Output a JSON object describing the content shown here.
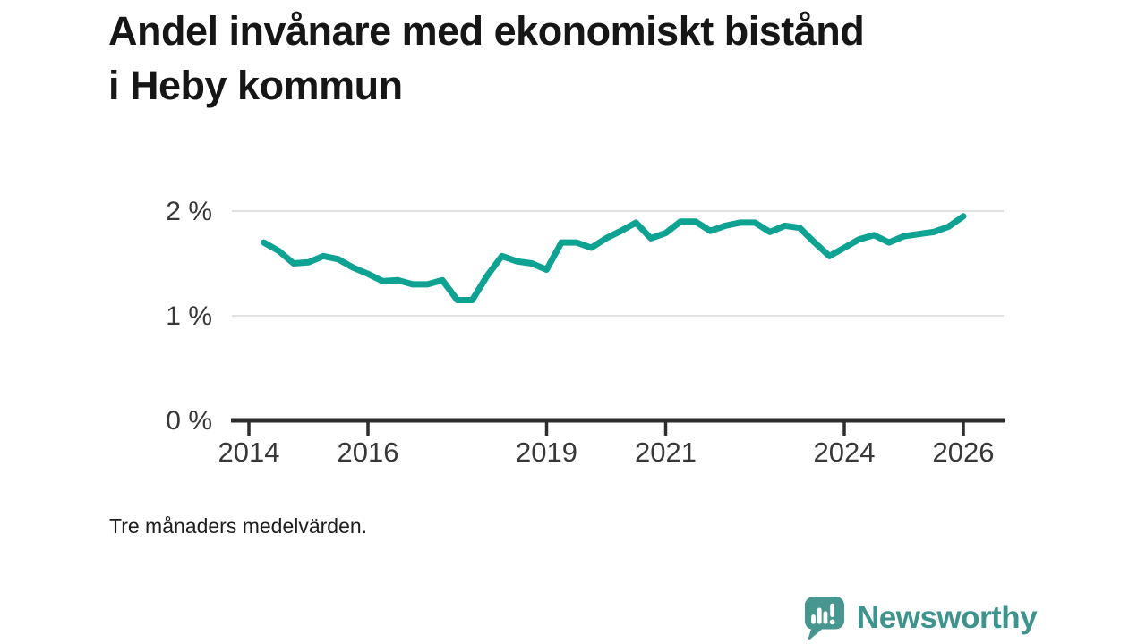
{
  "footer": {
    "brand": "Newsworthy"
  },
  "chart_data": {
    "type": "line",
    "title": "Andel invånare med ekonomiskt bistånd i Heby kommun",
    "note": "Tre månaders medelvärden.",
    "unit": "%",
    "x": [
      2014.25,
      2014.5,
      2014.75,
      2015.0,
      2015.25,
      2015.5,
      2015.75,
      2016.0,
      2016.25,
      2016.5,
      2016.75,
      2017.0,
      2017.25,
      2017.5,
      2017.75,
      2018.0,
      2018.25,
      2018.5,
      2018.75,
      2019.0,
      2019.25,
      2019.5,
      2019.75,
      2020.0,
      2020.25,
      2020.5,
      2020.75,
      2021.0,
      2021.25,
      2021.5,
      2021.75,
      2022.0,
      2022.25,
      2022.5,
      2022.75,
      2023.0,
      2023.25,
      2023.5,
      2023.75,
      2024.0,
      2024.25,
      2024.5,
      2024.75,
      2025.0,
      2025.25,
      2025.5,
      2025.75,
      2026.0
    ],
    "y": [
      1.7,
      1.62,
      1.5,
      1.51,
      1.57,
      1.54,
      1.46,
      1.4,
      1.33,
      1.34,
      1.3,
      1.3,
      1.34,
      1.15,
      1.15,
      1.38,
      1.57,
      1.52,
      1.5,
      1.44,
      1.7,
      1.7,
      1.65,
      1.74,
      1.81,
      1.89,
      1.74,
      1.79,
      1.9,
      1.9,
      1.81,
      1.86,
      1.89,
      1.89,
      1.8,
      1.86,
      1.84,
      1.7,
      1.57,
      1.65,
      1.73,
      1.77,
      1.7,
      1.76,
      1.78,
      1.8,
      1.85,
      1.95
    ],
    "xticks": [
      {
        "value": 2014,
        "label": "2014"
      },
      {
        "value": 2016,
        "label": "2016"
      },
      {
        "value": 2019,
        "label": "2019"
      },
      {
        "value": 2021,
        "label": "2021"
      },
      {
        "value": 2024,
        "label": "2024"
      },
      {
        "value": 2026,
        "label": "2026"
      }
    ],
    "yticks": [
      {
        "value": 0,
        "label": "0 %"
      },
      {
        "value": 1,
        "label": "1 %"
      },
      {
        "value": 2,
        "label": "2 %"
      }
    ],
    "xlim": [
      2013.72,
      2026.67
    ],
    "ylim": [
      0,
      2.2
    ],
    "grid": "horizontal",
    "legend": "none",
    "line_color": "#0ea293",
    "grid_color": "#e1e1e1",
    "axis_color": "#2d2d2d",
    "label_color": "#383838",
    "brand_color": "#47968f"
  }
}
